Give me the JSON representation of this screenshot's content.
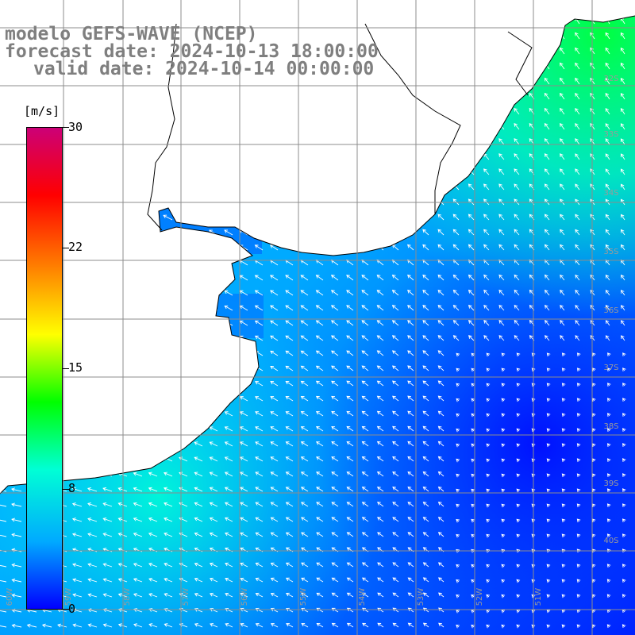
{
  "title": {
    "line1": "modelo GEFS-WAVE (NCEP)",
    "line2": "forecast date: 2024-10-13 18:00:00",
    "line3": "valid date: 2024-10-14 00:00:00"
  },
  "colorbar": {
    "unit": "[m/s]",
    "ticks": [
      "30",
      "22",
      "15",
      "8",
      "0"
    ],
    "colors": [
      "#0000ff",
      "#00aaff",
      "#00ffd5",
      "#00ff00",
      "#ffff00",
      "#ff8000",
      "#ff0000",
      "#cc0077"
    ]
  },
  "lat_labels": [
    "32S",
    "33S",
    "34S",
    "35S",
    "36S",
    "37S",
    "38S",
    "39S",
    "40S"
  ],
  "lon_labels": [
    "60W",
    "59W",
    "58W",
    "57W",
    "56W",
    "55W",
    "54W",
    "53W",
    "52W",
    "51W"
  ],
  "colors": {
    "land": "#ffffff",
    "coast": "#000000",
    "grid": "#8c8c8c",
    "arrow": "#ffffff"
  }
}
